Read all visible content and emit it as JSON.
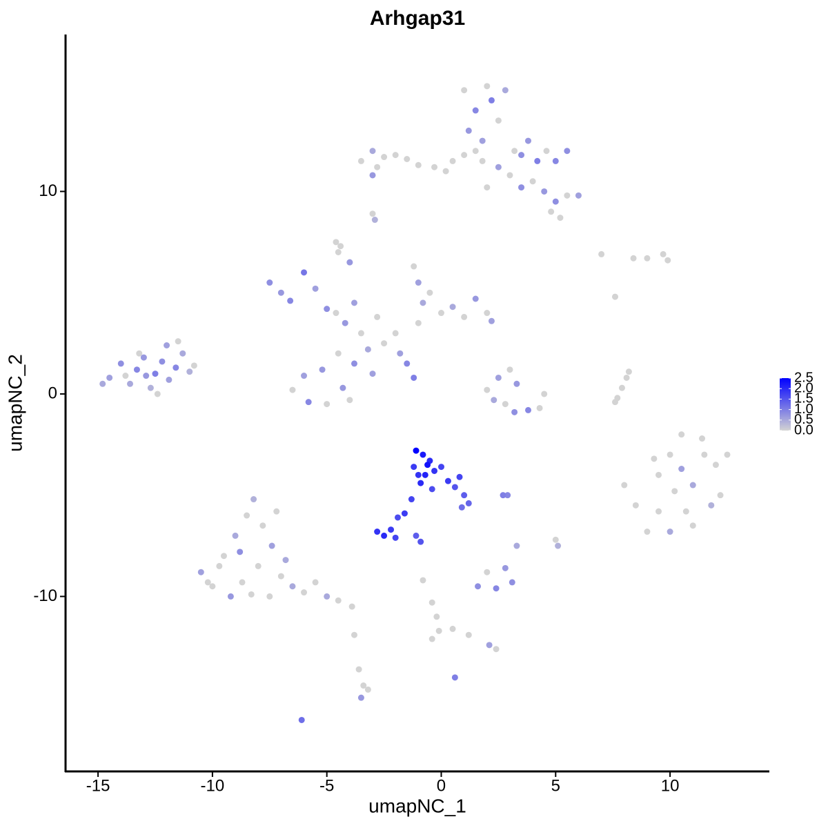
{
  "chart_data": {
    "type": "scatter",
    "title": "Arhgap31",
    "xlabel": "umapNC_1",
    "ylabel": "umapNC_2",
    "xlim": [
      -16.42,
      14.34
    ],
    "ylim": [
      -18.64,
      17.75
    ],
    "xticks": [
      -15,
      -10,
      -5,
      0,
      5,
      10
    ],
    "yticks": [
      -10,
      0,
      10
    ],
    "x": [
      -14.5,
      -14.0,
      -13.6,
      -13.3,
      -13.0,
      -12.7,
      -12.5,
      -12.2,
      -11.9,
      -11.6,
      -11.3,
      -11.0,
      -13.8,
      -12.9,
      -12.0,
      -11.5,
      -12.4,
      -13.2,
      -14.8,
      -10.8,
      -7.5,
      -7.0,
      -6.6,
      -6.0,
      -5.5,
      -5.0,
      -4.6,
      -4.2,
      -3.8,
      -3.5,
      -3.2,
      -3.8,
      -4.5,
      -5.2,
      -6.0,
      -6.5,
      -5.8,
      -5.0,
      -4.3,
      -4.0,
      -3.0,
      -2.5,
      -2.0,
      -1.5,
      -1.2,
      -1.8,
      -1.0,
      -0.8,
      -1.0,
      -1.2,
      -0.5,
      0.0,
      0.5,
      1.0,
      1.5,
      2.0,
      2.2,
      -2.8,
      -4.0,
      -4.5,
      1.0,
      1.5,
      2.0,
      1.2,
      2.5,
      1.8,
      2.2,
      2.8,
      3.2,
      3.5,
      3.8,
      4.2,
      4.6,
      5.0,
      5.5,
      4.0,
      3.0,
      2.5,
      1.8,
      4.5,
      5.0,
      5.5,
      6.0,
      4.8,
      5.2,
      2.0,
      3.5,
      1.0,
      0.5,
      1.5,
      -3.5,
      -3.0,
      -2.5,
      -2.0,
      -1.5,
      -1.0,
      -3.0,
      -0.3,
      -2.8,
      0.2,
      -2.9,
      -3.0,
      -4.6,
      -4.4,
      7.0,
      8.4,
      9.7,
      9.9,
      7.6,
      9.0,
      2.0,
      2.5,
      3.0,
      3.3,
      3.8,
      4.3,
      2.8,
      3.2,
      4.5,
      2.3,
      7.7,
      7.9,
      8.1,
      8.2,
      7.6,
      8.0,
      8.5,
      9.0,
      9.5,
      10.0,
      10.5,
      11.0,
      11.5,
      12.0,
      12.5,
      12.2,
      11.8,
      11.0,
      10.0,
      9.5,
      10.2,
      10.7,
      9.3,
      11.4,
      10.5,
      -1.1,
      -0.8,
      -0.5,
      -1.2,
      -0.7,
      -0.3,
      0.0,
      0.3,
      -0.9,
      -0.4,
      0.6,
      1.0,
      1.2,
      -1.3,
      -1.6,
      -1.9,
      -0.6,
      0.8,
      -1.0,
      0.9,
      -2.8,
      -2.5,
      -2.2,
      -2.0,
      -1.1,
      -0.9,
      -10.5,
      -10.0,
      -9.5,
      -9.0,
      -8.5,
      -8.2,
      -7.8,
      -7.4,
      -8.0,
      -8.7,
      -9.2,
      -7.5,
      -7.0,
      -6.5,
      -6.0,
      -5.5,
      -5.0,
      -4.5,
      -3.9,
      -8.8,
      -9.7,
      -7.2,
      -6.8,
      -8.3,
      -10.2,
      1.6,
      2.0,
      2.4,
      2.8,
      3.1,
      3.3,
      2.7,
      2.9,
      5.0,
      5.1,
      -0.8,
      -0.4,
      -0.2,
      -0.1,
      0.5,
      1.2,
      2.1,
      2.4,
      -3.8,
      -3.6,
      -3.4,
      -3.5,
      -3.2,
      -6.1,
      0.6,
      -0.4
    ],
    "y": [
      0.8,
      1.5,
      0.5,
      1.2,
      1.8,
      0.3,
      1.0,
      1.6,
      0.7,
      1.3,
      2.0,
      1.1,
      0.9,
      0.9,
      2.4,
      2.6,
      0.0,
      2.0,
      0.5,
      1.4,
      5.5,
      5.0,
      4.6,
      6.0,
      5.2,
      4.2,
      4.0,
      3.5,
      4.5,
      3.0,
      2.2,
      1.5,
      2.0,
      1.2,
      0.9,
      0.2,
      -0.4,
      -0.5,
      0.3,
      -0.3,
      1.0,
      2.5,
      3.0,
      1.5,
      0.8,
      2.0,
      3.5,
      4.5,
      5.5,
      6.3,
      5.0,
      4.0,
      4.3,
      3.8,
      4.7,
      4.0,
      3.6,
      3.8,
      6.5,
      7.0,
      15.0,
      14.0,
      15.2,
      13.0,
      13.5,
      12.5,
      14.5,
      15.0,
      12.0,
      11.8,
      12.5,
      11.5,
      12.0,
      11.5,
      12.0,
      10.5,
      10.8,
      11.2,
      11.5,
      10.0,
      9.5,
      9.8,
      9.8,
      9.0,
      8.7,
      10.2,
      10.2,
      11.8,
      11.5,
      12.0,
      11.5,
      12.0,
      11.7,
      11.8,
      11.6,
      11.3,
      10.8,
      11.2,
      11.2,
      11.0,
      8.6,
      8.9,
      7.5,
      7.3,
      6.9,
      6.7,
      6.9,
      6.6,
      4.8,
      6.7,
      0.2,
      0.8,
      1.2,
      0.5,
      -0.8,
      -0.7,
      -0.5,
      -0.9,
      0.0,
      -0.3,
      -0.2,
      0.3,
      0.8,
      1.1,
      -0.4,
      -4.5,
      -5.5,
      -6.8,
      -4.0,
      -3.0,
      -2.0,
      -4.5,
      -3.0,
      -3.5,
      -3.0,
      -5.0,
      -5.5,
      -6.5,
      -6.8,
      -5.8,
      -4.8,
      -5.8,
      -3.2,
      -2.2,
      -3.7,
      -2.8,
      -3.0,
      -3.3,
      -3.6,
      -4.0,
      -3.8,
      -3.6,
      -4.3,
      -4.4,
      -4.7,
      -4.6,
      -5.0,
      -5.4,
      -5.2,
      -5.9,
      -6.1,
      -3.5,
      -4.1,
      -4.0,
      -5.6,
      -6.8,
      -7.0,
      -6.7,
      -7.1,
      -7.0,
      -7.3,
      -8.8,
      -9.5,
      -8.0,
      -7.0,
      -6.0,
      -5.2,
      -6.5,
      -7.5,
      -8.5,
      -9.3,
      -10.0,
      -10.0,
      -9.0,
      -9.5,
      -9.8,
      -9.3,
      -10.0,
      -10.2,
      -10.5,
      -7.8,
      -8.5,
      -5.8,
      -8.2,
      -9.9,
      -9.3,
      -9.5,
      -8.8,
      -9.6,
      -8.6,
      -9.3,
      -7.5,
      -5.0,
      -5.0,
      -7.2,
      -7.5,
      -9.2,
      -10.3,
      -11.0,
      -11.7,
      -11.6,
      -11.9,
      -12.4,
      -12.6,
      -11.9,
      -13.6,
      -14.4,
      -15.0,
      -14.6,
      -16.1,
      -14.0,
      -12.1
    ],
    "values": [
      0.6,
      0.8,
      0.5,
      0.9,
      0.7,
      0.4,
      1.0,
      0.8,
      0.6,
      0.9,
      0.5,
      0.4,
      0,
      0.7,
      0.6,
      0,
      0,
      0,
      0.5,
      0,
      0.8,
      0.7,
      0.9,
      1.1,
      0.6,
      0.8,
      0,
      0.7,
      0.6,
      0,
      0.5,
      0.8,
      0,
      0.7,
      0.6,
      0,
      0.9,
      0,
      0.7,
      0,
      0.6,
      0,
      0,
      0.9,
      1.0,
      0.6,
      0,
      0.5,
      0.6,
      0,
      0,
      0,
      0.5,
      0,
      0.7,
      0,
      0.6,
      0,
      0.7,
      0,
      0,
      0.9,
      0,
      0.7,
      0,
      0.6,
      1.0,
      0.5,
      0,
      0.8,
      0.7,
      1.0,
      0,
      0.9,
      0.8,
      0,
      0,
      0.6,
      0,
      0.7,
      0.8,
      0,
      0.6,
      0,
      0,
      0,
      0.8,
      0,
      0,
      0,
      0,
      0.5,
      0,
      0,
      0,
      0,
      0.7,
      0,
      0,
      0,
      0.4,
      0,
      0,
      0,
      0,
      0,
      0,
      0,
      0,
      0,
      0,
      0.6,
      0,
      0.7,
      0.9,
      0,
      0,
      0.8,
      0,
      0.5,
      0,
      0,
      0,
      0,
      0,
      0,
      0,
      0,
      0,
      0,
      0,
      0.5,
      0,
      0,
      0,
      0,
      0.4,
      0,
      0.5,
      0,
      0,
      0,
      0,
      0,
      0.6,
      2.5,
      2.2,
      2.0,
      1.8,
      2.1,
      1.9,
      1.7,
      1.8,
      2.0,
      1.6,
      1.5,
      1.4,
      1.3,
      1.7,
      1.8,
      1.6,
      2.3,
      1.7,
      1.9,
      1.2,
      1.9,
      2.0,
      1.8,
      1.7,
      1.4,
      1.5,
      0.6,
      0,
      0,
      0.5,
      0,
      0.4,
      0,
      0.6,
      0,
      0,
      0.7,
      0,
      0,
      0.5,
      0,
      0,
      0.5,
      0,
      0,
      0.8,
      0,
      0,
      0.5,
      0,
      0,
      0.8,
      0,
      0.9,
      0.7,
      0.8,
      0.5,
      1.0,
      0.9,
      0,
      0.4,
      0,
      0,
      0,
      0,
      0,
      0,
      0.6,
      0,
      0,
      0,
      0,
      0.7,
      0,
      1.2,
      1.0,
      0
    ],
    "colorbar": {
      "lim": [
        0,
        2.5
      ],
      "ticks": [
        {
          "value": 0,
          "label": "0.0"
        },
        0.5,
        {
          "value": 1,
          "label": "1.0"
        },
        1.5,
        {
          "value": 2,
          "label": "2.0"
        },
        2.5
      ],
      "low_color": "#d3d3d3",
      "high_color": "#0000ff"
    }
  }
}
